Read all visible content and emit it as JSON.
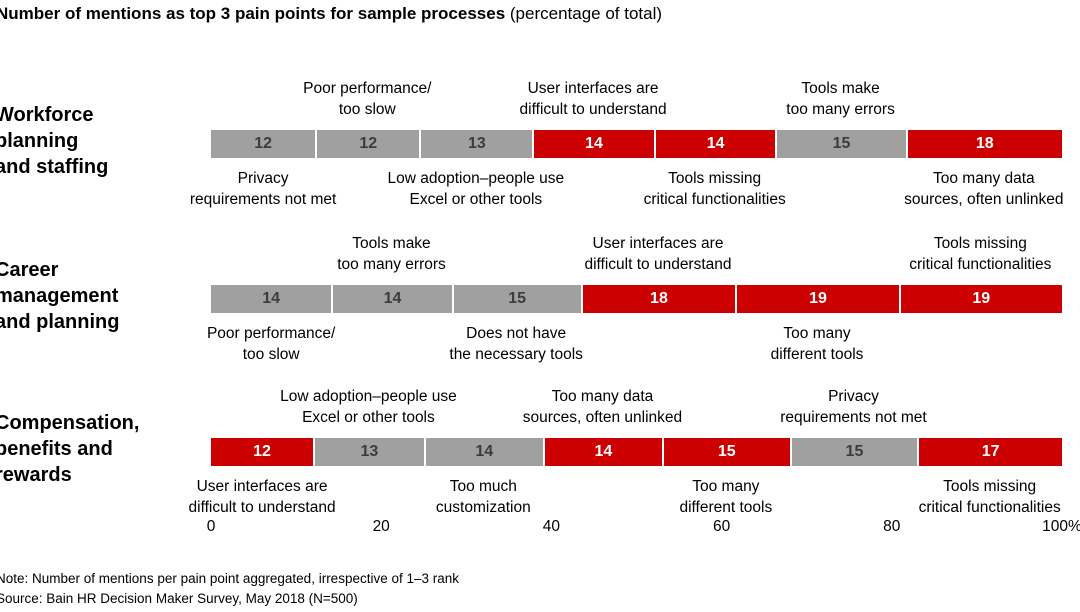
{
  "title": {
    "bold": "Number of mentions as top 3 pain points for sample processes",
    "normal": " (percentage of total)"
  },
  "axis": {
    "tick_labels": [
      "0",
      "20",
      "40",
      "60",
      "80",
      "100%"
    ]
  },
  "footer": {
    "note": "Note: Number of mentions per pain point aggregated, irrespective of 1–3 rank",
    "source": "Source: Bain HR Decision Maker Survey, May 2018 (N=500)"
  },
  "colors": {
    "red": "#CC0000",
    "gray": "#A0A0A0",
    "number_on_gray": "#3C3C3C",
    "number_on_red": "#FFFFFF"
  },
  "chart_data": {
    "type": "bar",
    "stacked": true,
    "orientation": "horizontal",
    "title": "Number of mentions as top 3 pain points for sample processes (percentage of total)",
    "xlabel": "",
    "ylabel": "",
    "xlim": [
      0,
      100
    ],
    "x_ticks": [
      0,
      20,
      40,
      60,
      80,
      100
    ],
    "grid": false,
    "legend": false,
    "rows": [
      {
        "category": "Workforce planning and staffing",
        "category_lines": [
          "Workforce",
          "planning",
          "and staffing"
        ],
        "segments": [
          {
            "value": 12,
            "color": "gray",
            "label": "Privacy requirements not met",
            "label_pos": "below",
            "label_lines": [
              "Privacy",
              "requirements not met"
            ]
          },
          {
            "value": 12,
            "color": "gray",
            "label": "Poor performance/too slow",
            "label_pos": "above",
            "label_lines": [
              "Poor performance/",
              "too slow"
            ]
          },
          {
            "value": 13,
            "color": "gray",
            "label": "Low adoption–people use Excel or other tools",
            "label_pos": "below",
            "label_lines": [
              "Low adoption–people use",
              "Excel or other tools"
            ]
          },
          {
            "value": 14,
            "color": "red",
            "label": "User interfaces are difficult to understand",
            "label_pos": "above",
            "label_lines": [
              "User interfaces are",
              "difficult to understand"
            ]
          },
          {
            "value": 14,
            "color": "red",
            "label": "Tools missing critical functionalities",
            "label_pos": "below",
            "label_lines": [
              "Tools missing",
              "critical functionalities"
            ]
          },
          {
            "value": 15,
            "color": "gray",
            "label": "Tools make too many errors",
            "label_pos": "above",
            "label_lines": [
              "Tools make",
              "too many errors"
            ]
          },
          {
            "value": 18,
            "color": "red",
            "label": "Too many data sources, often unlinked",
            "label_pos": "below",
            "label_lines": [
              "Too many data",
              "sources, often unlinked"
            ]
          }
        ]
      },
      {
        "category": "Career management and planning",
        "category_lines": [
          "Career",
          "management",
          "and planning"
        ],
        "segments": [
          {
            "value": 14,
            "color": "gray",
            "label": "Poor performance/too slow",
            "label_pos": "below",
            "label_lines": [
              "Poor performance/",
              "too slow"
            ]
          },
          {
            "value": 14,
            "color": "gray",
            "label": "Tools make too many errors",
            "label_pos": "above",
            "label_lines": [
              "Tools make",
              "too many errors"
            ]
          },
          {
            "value": 15,
            "color": "gray",
            "label": "Does not have the necessary tools",
            "label_pos": "below",
            "label_lines": [
              "Does not have",
              "the necessary tools"
            ]
          },
          {
            "value": 18,
            "color": "red",
            "label": "User interfaces are difficult to understand",
            "label_pos": "above",
            "label_lines": [
              "User interfaces are",
              "difficult to understand"
            ]
          },
          {
            "value": 19,
            "color": "red",
            "label": "Too many different tools",
            "label_pos": "below",
            "label_lines": [
              "Too many",
              "different tools"
            ]
          },
          {
            "value": 19,
            "color": "red",
            "label": "Tools missing critical functionalities",
            "label_pos": "above",
            "label_lines": [
              "Tools missing",
              "critical functionalities"
            ]
          }
        ]
      },
      {
        "category": "Compensation, benefits and rewards",
        "category_lines": [
          "Compensation,",
          "benefits and",
          "rewards"
        ],
        "segments": [
          {
            "value": 12,
            "color": "red",
            "label": "User interfaces are difficult to understand",
            "label_pos": "below",
            "label_lines": [
              "User interfaces are",
              "difficult to understand"
            ]
          },
          {
            "value": 13,
            "color": "gray",
            "label": "Low adoption–people use Excel or other tools",
            "label_pos": "above",
            "label_lines": [
              "Low adoption–people use",
              "Excel or other tools"
            ]
          },
          {
            "value": 14,
            "color": "gray",
            "label": "Too much customization",
            "label_pos": "below",
            "label_lines": [
              "Too much",
              "customization"
            ]
          },
          {
            "value": 14,
            "color": "red",
            "label": "Too many data sources, often unlinked",
            "label_pos": "above",
            "label_lines": [
              "Too many data",
              "sources, often unlinked"
            ]
          },
          {
            "value": 15,
            "color": "red",
            "label": "Too many different tools",
            "label_pos": "below",
            "label_lines": [
              "Too many",
              "different tools"
            ]
          },
          {
            "value": 15,
            "color": "gray",
            "label": "Privacy requirements not met",
            "label_pos": "above",
            "label_lines": [
              "Privacy",
              "requirements not met"
            ]
          },
          {
            "value": 17,
            "color": "red",
            "label": "Tools missing critical functionalities",
            "label_pos": "below",
            "label_lines": [
              "Tools missing",
              "critical functionalities"
            ]
          }
        ]
      }
    ]
  }
}
